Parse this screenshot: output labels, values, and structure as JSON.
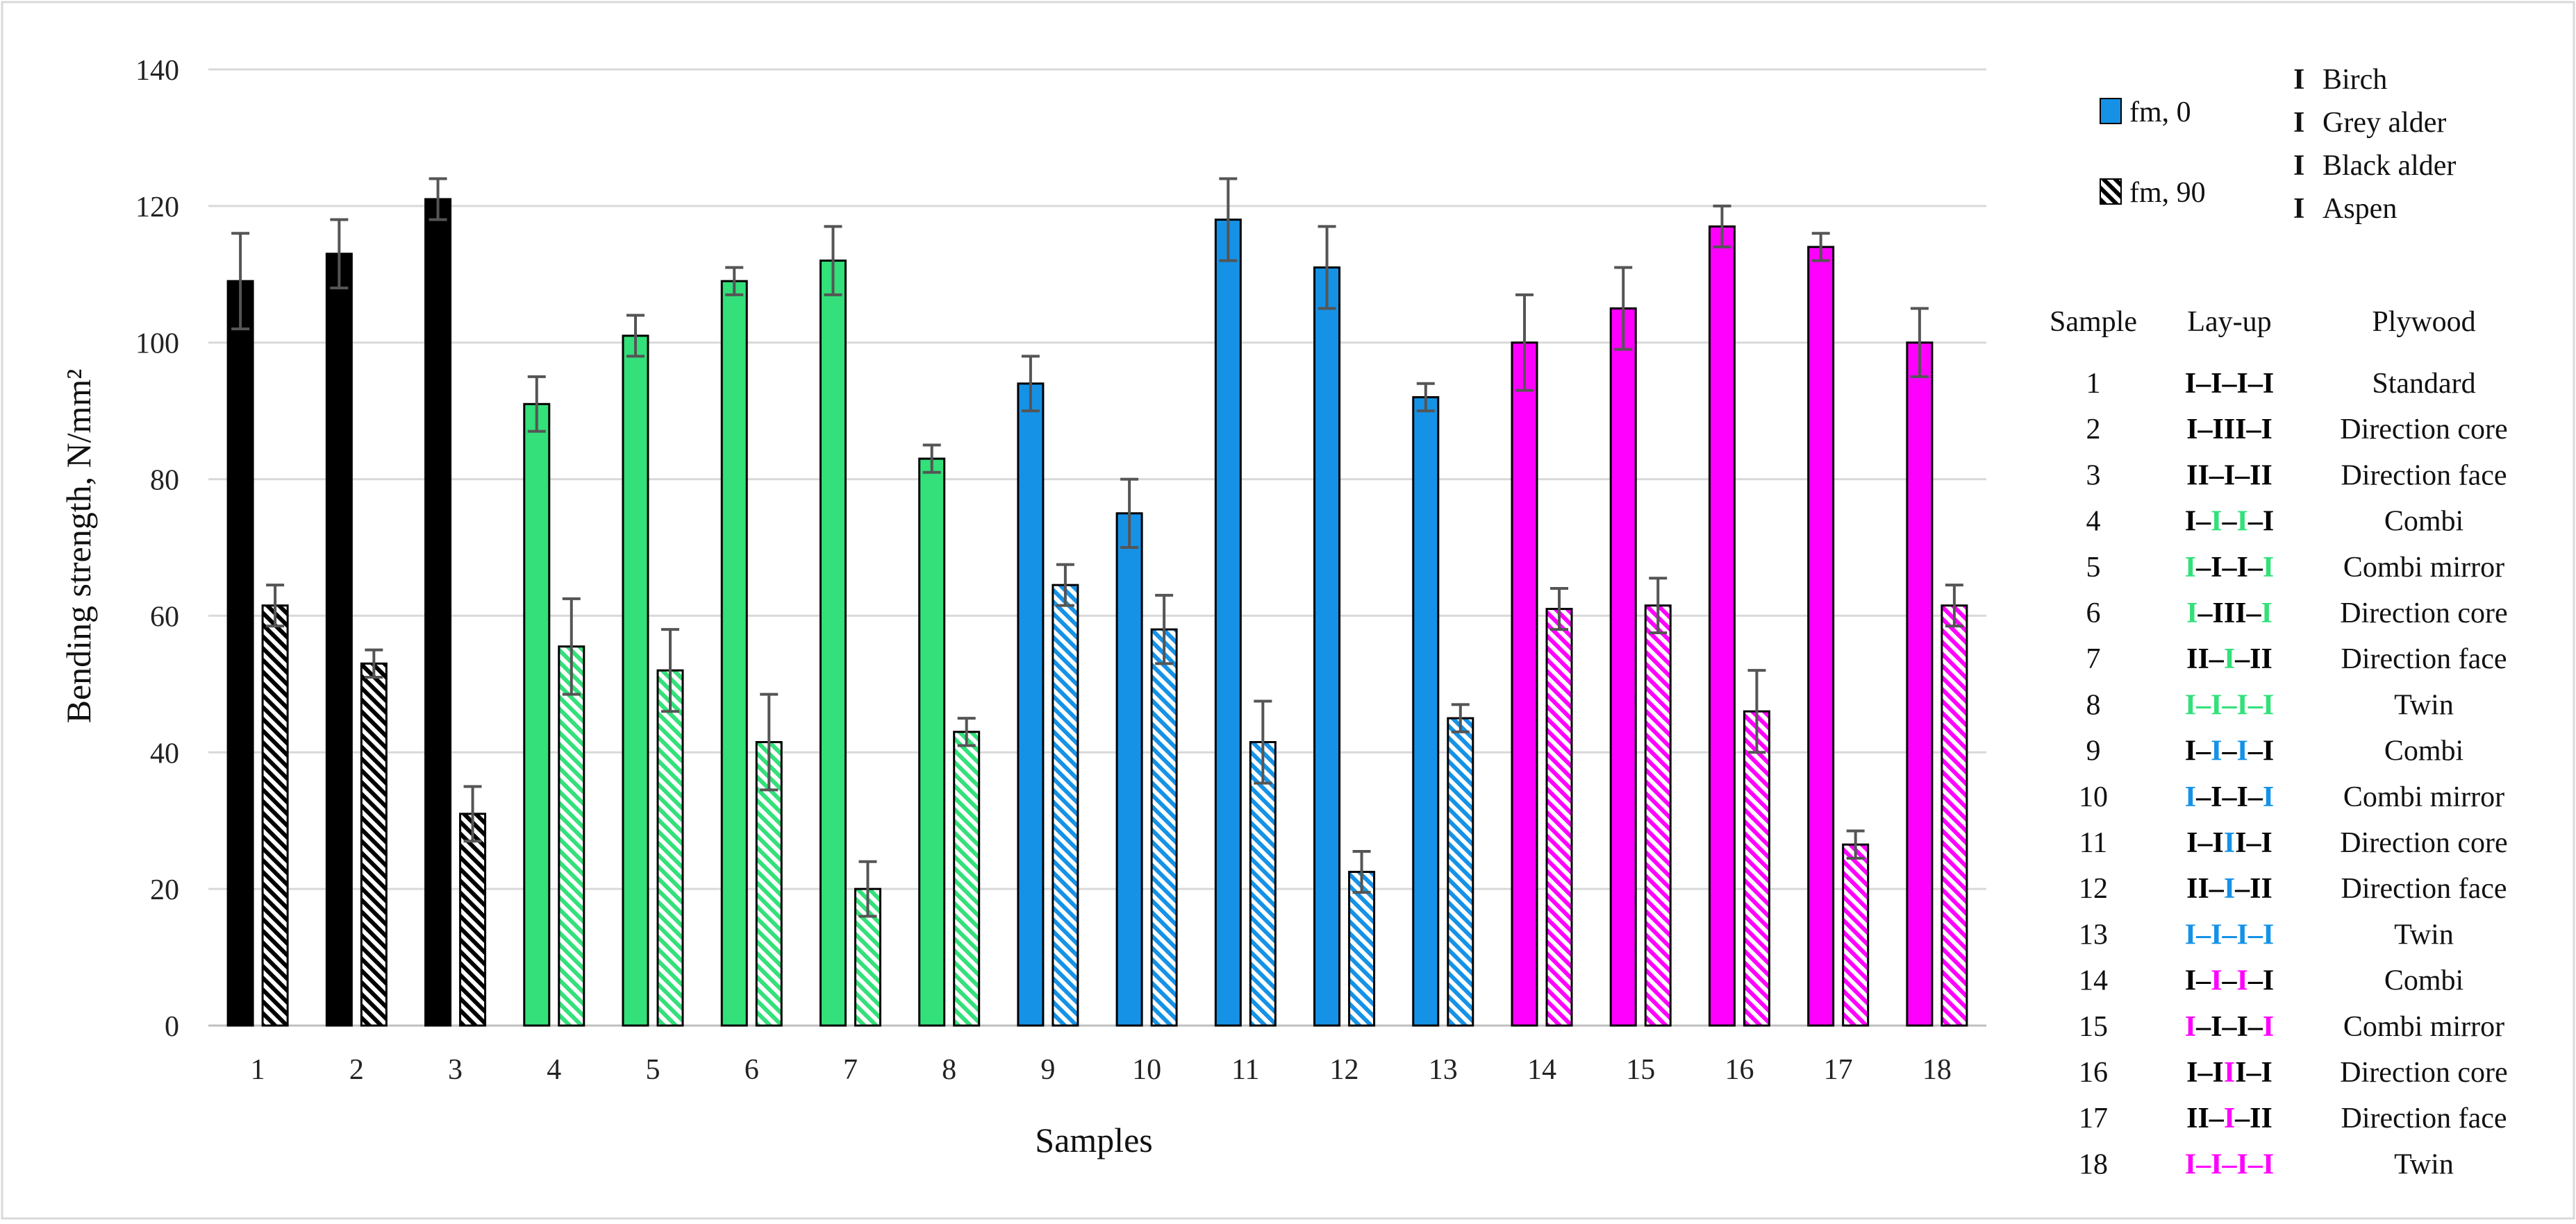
{
  "chart_data": {
    "type": "bar",
    "title": "",
    "xlabel": "Samples",
    "ylabel": "Bending strength, N/mm²",
    "ylim": [
      0,
      140
    ],
    "yticks": [
      "0",
      "20",
      "40",
      "60",
      "80",
      "100",
      "120",
      "140"
    ],
    "grid": true,
    "categories": [
      "1",
      "2",
      "3",
      "4",
      "5",
      "6",
      "7",
      "8",
      "9",
      "10",
      "11",
      "12",
      "13",
      "14",
      "15",
      "16",
      "17",
      "18"
    ],
    "series": [
      {
        "name": "fm, 0",
        "pattern": "solid",
        "values": [
          109,
          113,
          121,
          91,
          101,
          109,
          112,
          83,
          94,
          75,
          118,
          111,
          92,
          100,
          105,
          117,
          114,
          100
        ],
        "errors": [
          7,
          5,
          3,
          4,
          3,
          2,
          5,
          2,
          4,
          5,
          6,
          6,
          2,
          7,
          6,
          3,
          2,
          5
        ]
      },
      {
        "name": "fm, 90",
        "pattern": "hatched",
        "values": [
          61.5,
          53,
          31,
          55.5,
          52,
          41.5,
          20,
          43,
          64.5,
          58,
          41.5,
          22.5,
          45,
          61,
          61.5,
          46,
          26.5,
          61.5
        ],
        "errors": [
          3,
          2,
          4,
          7,
          6,
          7,
          4,
          2,
          3,
          5,
          6,
          3,
          2,
          3,
          4,
          6,
          2,
          3
        ]
      }
    ],
    "bar_species": [
      "Birch",
      "Birch",
      "Birch",
      "Grey alder",
      "Grey alder",
      "Grey alder",
      "Grey alder",
      "Grey alder",
      "Black alder",
      "Black alder",
      "Black alder",
      "Black alder",
      "Black alder",
      "Aspen",
      "Aspen",
      "Aspen",
      "Aspen",
      "Aspen"
    ],
    "legend": {
      "placement": "right",
      "series_entries": [
        "fm, 0",
        "fm, 90"
      ],
      "species_symbol": "I",
      "species": [
        {
          "name": "Birch",
          "color": "#000000"
        },
        {
          "name": "Grey alder",
          "color": "#33e07a"
        },
        {
          "name": "Black alder",
          "color": "#1592e6"
        },
        {
          "name": "Aspen",
          "color": "#ff00ff"
        }
      ]
    },
    "table": {
      "headers": [
        "Sample",
        "Lay-up",
        "Plywood"
      ],
      "rows": [
        {
          "sample": "1",
          "layup": [
            [
              "I–I–I–I",
              "#000000"
            ]
          ],
          "plywood": "Standard"
        },
        {
          "sample": "2",
          "layup": [
            [
              "I–III–I",
              "#000000"
            ]
          ],
          "plywood": "Direction core"
        },
        {
          "sample": "3",
          "layup": [
            [
              "II–I–II",
              "#000000"
            ]
          ],
          "plywood": "Direction face"
        },
        {
          "sample": "4",
          "layup": [
            [
              "I–",
              "#000000"
            ],
            [
              "I",
              "#33e07a"
            ],
            [
              "–",
              "#000000"
            ],
            [
              "I",
              "#33e07a"
            ],
            [
              "–I",
              "#000000"
            ]
          ],
          "plywood": "Combi"
        },
        {
          "sample": "5",
          "layup": [
            [
              "I",
              "#33e07a"
            ],
            [
              "–I–I–",
              "#000000"
            ],
            [
              "I",
              "#33e07a"
            ]
          ],
          "plywood": "Combi mirror"
        },
        {
          "sample": "6",
          "layup": [
            [
              "I",
              "#33e07a"
            ],
            [
              "–III–",
              "#000000"
            ],
            [
              "I",
              "#33e07a"
            ]
          ],
          "plywood": "Direction core"
        },
        {
          "sample": "7",
          "layup": [
            [
              "II–",
              "#000000"
            ],
            [
              "I",
              "#33e07a"
            ],
            [
              "–II",
              "#000000"
            ]
          ],
          "plywood": "Direction face"
        },
        {
          "sample": "8",
          "layup": [
            [
              "I–I–I–I",
              "#33e07a"
            ]
          ],
          "plywood": "Twin"
        },
        {
          "sample": "9",
          "layup": [
            [
              "I–",
              "#000000"
            ],
            [
              "I",
              "#1592e6"
            ],
            [
              "–",
              "#000000"
            ],
            [
              "I",
              "#1592e6"
            ],
            [
              "–I",
              "#000000"
            ]
          ],
          "plywood": "Combi"
        },
        {
          "sample": "10",
          "layup": [
            [
              "I",
              "#1592e6"
            ],
            [
              "–I–I–",
              "#000000"
            ],
            [
              "I",
              "#1592e6"
            ]
          ],
          "plywood": "Combi mirror"
        },
        {
          "sample": "11",
          "layup": [
            [
              "I–I",
              "#000000"
            ],
            [
              "I",
              "#1592e6"
            ],
            [
              "I–I",
              "#000000"
            ]
          ],
          "plywood": "Direction core"
        },
        {
          "sample": "12",
          "layup": [
            [
              "II–",
              "#000000"
            ],
            [
              "I",
              "#1592e6"
            ],
            [
              "–II",
              "#000000"
            ]
          ],
          "plywood": "Direction face"
        },
        {
          "sample": "13",
          "layup": [
            [
              "I–I–I–I",
              "#1592e6"
            ]
          ],
          "plywood": "Twin"
        },
        {
          "sample": "14",
          "layup": [
            [
              "I–",
              "#000000"
            ],
            [
              "I",
              "#ff00ff"
            ],
            [
              "–",
              "#000000"
            ],
            [
              "I",
              "#ff00ff"
            ],
            [
              "–I",
              "#000000"
            ]
          ],
          "plywood": "Combi"
        },
        {
          "sample": "15",
          "layup": [
            [
              "I",
              "#ff00ff"
            ],
            [
              "–I–I–",
              "#000000"
            ],
            [
              "I",
              "#ff00ff"
            ]
          ],
          "plywood": "Combi mirror"
        },
        {
          "sample": "16",
          "layup": [
            [
              "I–I",
              "#000000"
            ],
            [
              "I",
              "#ff00ff"
            ],
            [
              "I–I",
              "#000000"
            ]
          ],
          "plywood": "Direction core"
        },
        {
          "sample": "17",
          "layup": [
            [
              "II–",
              "#000000"
            ],
            [
              "I",
              "#ff00ff"
            ],
            [
              "–II",
              "#000000"
            ]
          ],
          "plywood": "Direction face"
        },
        {
          "sample": "18",
          "layup": [
            [
              "I–I–I–I",
              "#ff00ff"
            ]
          ],
          "plywood": "Twin"
        }
      ]
    }
  },
  "colors": {
    "Birch": "#000000",
    "Grey alder": "#33e07a",
    "Black alder": "#1592e6",
    "Aspen": "#ff00ff",
    "grid": "#d9d9d9",
    "frame": "#d9d9d9",
    "error_bar": "#555555"
  }
}
